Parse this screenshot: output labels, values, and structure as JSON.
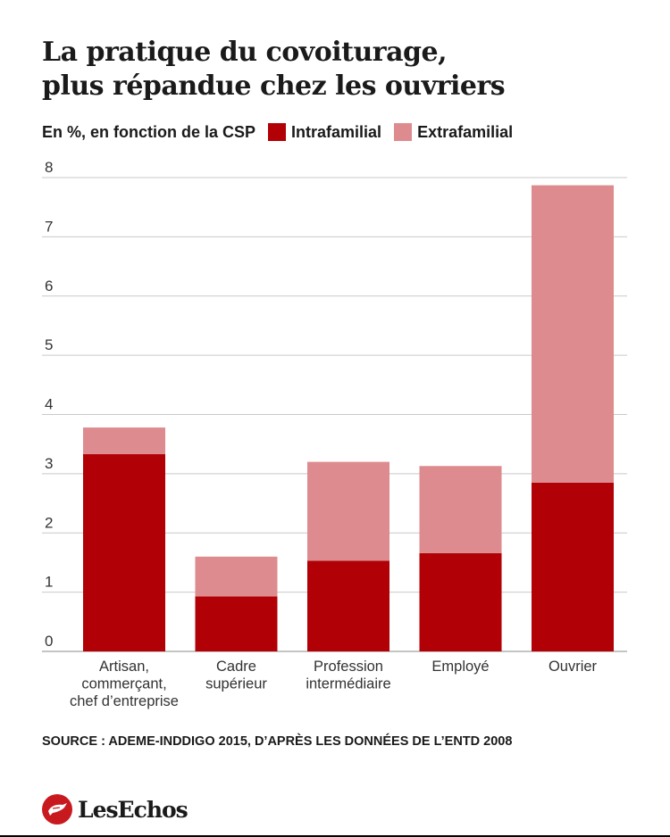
{
  "title_lines": [
    "La pratique du covoiturage,",
    "plus répandue chez les ouvriers"
  ],
  "colors": {
    "intra": "#b10006",
    "extra": "#dd8b8e",
    "grid": "#c9c9c9",
    "text": "#1a1a1a"
  },
  "legend": {
    "subtitle": "En %, en fonction de la CSP",
    "intra_label": "Intrafamilial",
    "extra_label": "Extrafamilial"
  },
  "source": "SOURCE : ADEME-INDDIGO 2015, D’APRÈS LES DONNÉES DE L’ENTD 2008",
  "brand": {
    "name": "LesEchos",
    "icon": "les-echos-logo-icon"
  },
  "chart_data": {
    "type": "bar",
    "stacked": true,
    "categories": [
      [
        "Artisan,",
        "commerçant,",
        "chef d’entreprise"
      ],
      [
        "Cadre",
        "supérieur"
      ],
      [
        "Profession",
        "intermédiaire"
      ],
      [
        "Employé"
      ],
      [
        "Ouvrier"
      ]
    ],
    "series": [
      {
        "name": "Intrafamilial",
        "values": [
          3.33,
          0.93,
          1.53,
          1.66,
          2.85
        ]
      },
      {
        "name": "Extrafamilial",
        "values": [
          0.45,
          0.67,
          1.67,
          1.47,
          5.02
        ]
      }
    ],
    "ylim": [
      0,
      8
    ],
    "yticks": [
      0,
      1,
      2,
      3,
      4,
      5,
      6,
      7,
      8
    ],
    "grid": true,
    "legend_position": "top-left"
  }
}
